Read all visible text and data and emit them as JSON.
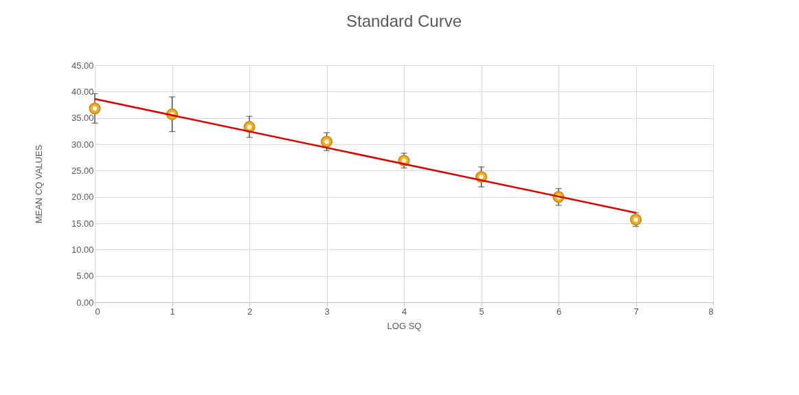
{
  "chart_data": {
    "type": "scatter",
    "title": "Standard Curve",
    "xlabel": "LOG SQ",
    "ylabel": "MEAN CQ VALUES",
    "x": [
      0,
      1,
      2,
      3,
      4,
      5,
      6,
      7
    ],
    "series": [
      {
        "color": "#f0b030",
        "values": [
          36.8,
          35.7,
          33.3,
          30.5,
          26.9,
          23.8,
          20.0,
          15.7
        ],
        "errors": [
          2.8,
          3.3,
          2.0,
          1.7,
          1.4,
          1.9,
          1.6,
          1.3
        ],
        "marker": "circle"
      },
      {
        "type": "line",
        "color": "#e00000",
        "x": [
          0,
          7
        ],
        "values": [
          38.6,
          17.0
        ],
        "line_style": "solid"
      }
    ],
    "xlim": [
      0,
      8
    ],
    "xticks": [
      0,
      1,
      2,
      3,
      4,
      5,
      6,
      7,
      8
    ],
    "ylim": [
      0,
      45
    ],
    "yticks": [
      {
        "value": 0,
        "label": "0.00"
      },
      {
        "value": 5,
        "label": "5.00"
      },
      {
        "value": 10,
        "label": "10.00"
      },
      {
        "value": 15,
        "label": "15.00"
      },
      {
        "value": 20,
        "label": "20.00"
      },
      {
        "value": 25,
        "label": "25.00"
      },
      {
        "value": 30,
        "label": "30.00"
      },
      {
        "value": 35,
        "label": "35.00"
      },
      {
        "value": 40,
        "label": "40.00"
      },
      {
        "value": 45,
        "label": "45.00"
      }
    ],
    "grid": true
  }
}
